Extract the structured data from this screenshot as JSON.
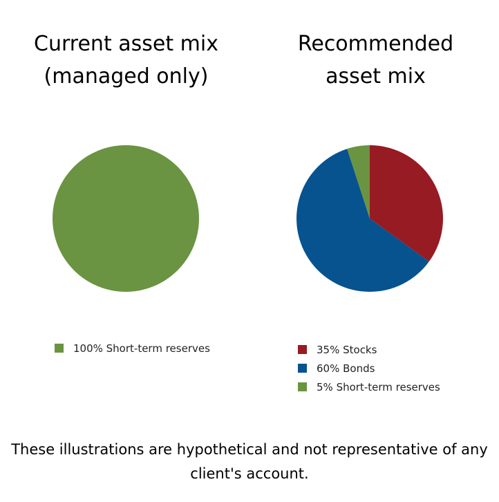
{
  "chart_data": [
    {
      "type": "pie",
      "title": "Current asset mix (managed only)",
      "slices": [
        {
          "label": "100% Short-term reserves",
          "value": 100,
          "color": "#6A9441"
        }
      ],
      "legend_position": "bottom"
    },
    {
      "type": "pie",
      "title": "Recommended asset mix",
      "slices": [
        {
          "label": "35% Stocks",
          "value": 35,
          "color": "#961B23"
        },
        {
          "label": "60% Bonds",
          "value": 60,
          "color": "#06538F"
        },
        {
          "label": "5% Short-term reserves",
          "value": 5,
          "color": "#6A9441"
        }
      ],
      "legend_position": "bottom"
    }
  ],
  "footnote": "These illustrations are hypothetical and not representative of any client's account."
}
